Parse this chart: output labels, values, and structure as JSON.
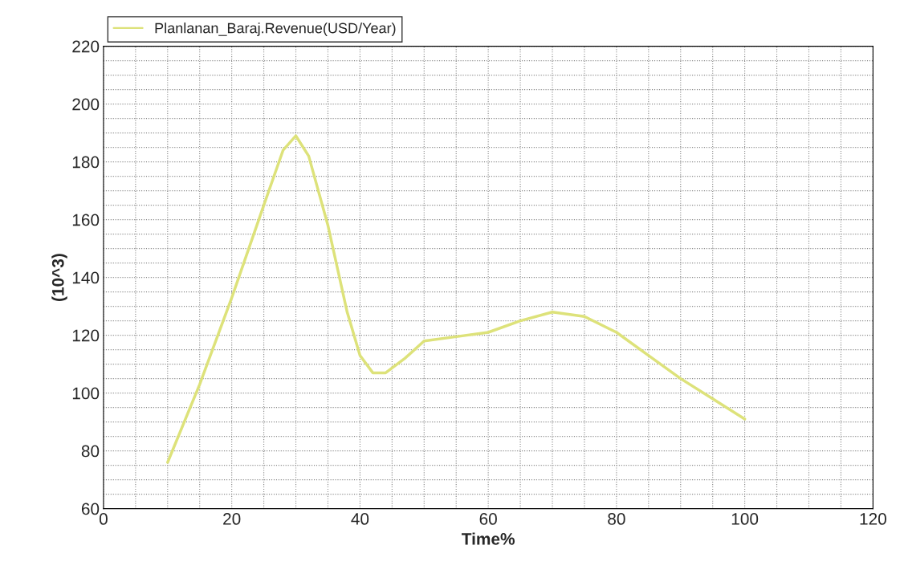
{
  "chart_data": {
    "type": "line",
    "xlabel": "Time%",
    "ylabel": "(10^3)",
    "series": [
      {
        "name": "Planlanan_Baraj.Revenue(USD/Year)",
        "color": "#dde27a",
        "x": [
          10,
          15,
          20,
          25,
          28,
          30,
          32,
          35,
          38,
          40,
          42,
          44,
          47,
          50,
          55,
          60,
          65,
          70,
          75,
          80,
          85,
          90,
          95,
          100
        ],
        "values": [
          76,
          103,
          133,
          165,
          184,
          189,
          182,
          158,
          128,
          113,
          107,
          107,
          112,
          118,
          119.5,
          121,
          125,
          128,
          126.5,
          121,
          113,
          105,
          98,
          91
        ]
      }
    ],
    "xlim": [
      0,
      120
    ],
    "xticks": [
      0,
      20,
      40,
      60,
      80,
      100,
      120
    ],
    "ylim": [
      60,
      220
    ],
    "yticks": [
      60,
      80,
      100,
      120,
      140,
      160,
      180,
      200,
      220
    ],
    "grid": true,
    "legend": "top left",
    "line_style": "solid"
  }
}
